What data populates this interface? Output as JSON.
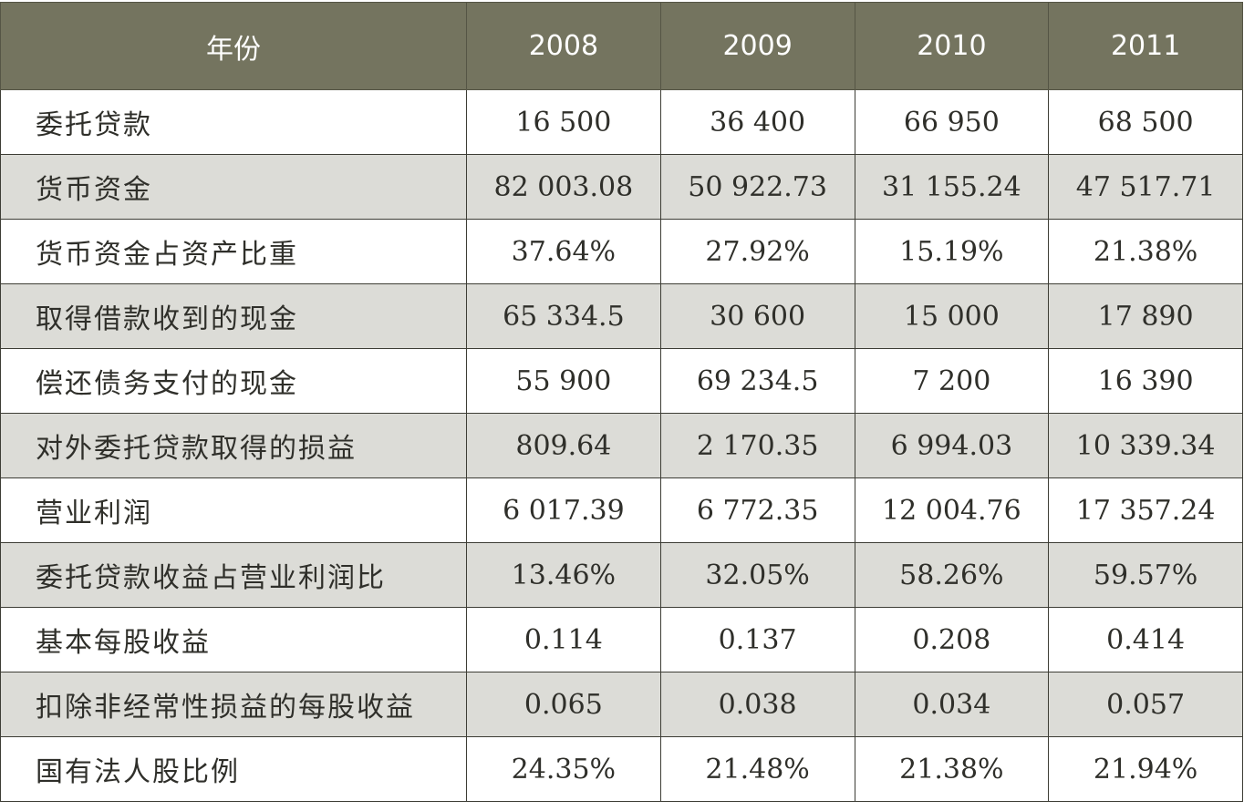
{
  "header": {
    "label": "年份",
    "years": [
      "2008",
      "2009",
      "2010",
      "2011"
    ]
  },
  "rows": [
    {
      "label": "委托贷款",
      "values": [
        "16 500",
        "36 400",
        "66 950",
        "68 500"
      ]
    },
    {
      "label": "货币资金",
      "values": [
        "82 003.08",
        "50 922.73",
        "31 155.24",
        "47 517.71"
      ]
    },
    {
      "label": "货币资金占资产比重",
      "values": [
        "37.64%",
        "27.92%",
        "15.19%",
        "21.38%"
      ]
    },
    {
      "label": "取得借款收到的现金",
      "values": [
        "65 334.5",
        "30 600",
        "15 000",
        "17 890"
      ]
    },
    {
      "label": "偿还债务支付的现金",
      "values": [
        "55 900",
        "69 234.5",
        "7 200",
        "16 390"
      ]
    },
    {
      "label": "对外委托贷款取得的损益",
      "values": [
        "809.64",
        "2 170.35",
        "6 994.03",
        "10 339.34"
      ]
    },
    {
      "label": "营业利润",
      "values": [
        "6 017.39",
        "6 772.35",
        "12 004.76",
        "17 357.24"
      ]
    },
    {
      "label": "委托贷款收益占营业利润比",
      "values": [
        "13.46%",
        "32.05%",
        "58.26%",
        "59.57%"
      ]
    },
    {
      "label": "基本每股收益",
      "values": [
        "0.114",
        "0.137",
        "0.208",
        "0.414"
      ]
    },
    {
      "label": "扣除非经常性损益的每股收益",
      "values": [
        "0.065",
        "0.038",
        "0.034",
        "0.057"
      ]
    },
    {
      "label": "国有法人股比例",
      "values": [
        "24.35%",
        "21.48%",
        "21.38%",
        "21.94%"
      ]
    }
  ],
  "colors": {
    "header_bg": "#74745f",
    "header_text": "#ffffff",
    "stripe_bg": "#dcdcd7",
    "row_bg": "#ffffff"
  }
}
